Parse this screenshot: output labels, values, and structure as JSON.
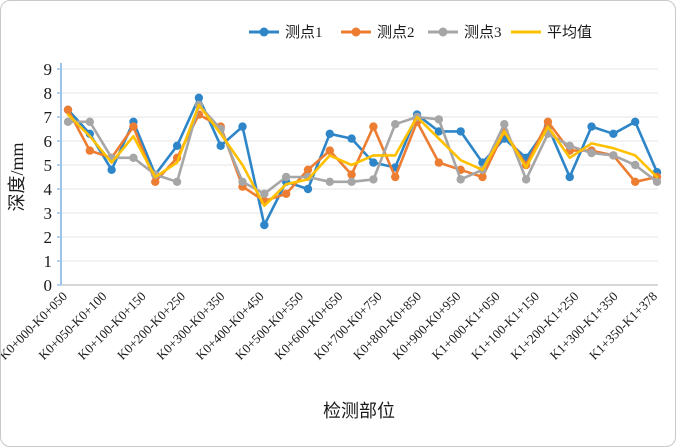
{
  "chart_data": {
    "type": "line",
    "title": "",
    "xlabel": "检测部位",
    "ylabel": "深度/mm",
    "ylim": [
      0,
      9
    ],
    "y_ticks": [
      0,
      1,
      2,
      3,
      4,
      5,
      6,
      7,
      8,
      9
    ],
    "grid": "horizontal",
    "legend_position": "top",
    "n_points": 28,
    "x_tick_labels": [
      "K0+000-K0+050",
      "K0+050-K0+100",
      "K0+100-K0+150",
      "K0+200-K0+250",
      "K0+300-K0+350",
      "K0+400-K0+450",
      "K0+500-K0+550",
      "K0+600-K0+650",
      "K0+700-K0+750",
      "K0+800-K0+850",
      "K0+900-K0+950",
      "K1+000-K1+050",
      "K1+100-K1+150",
      "K1+200-K1+250",
      "K1+300-K1+350",
      "K1+350-K1+378"
    ],
    "series": [
      {
        "name": "测点1",
        "color": "#2E86C8",
        "marker": "circle",
        "values": [
          7.3,
          6.3,
          4.8,
          6.8,
          4.6,
          5.8,
          7.8,
          5.8,
          6.6,
          2.5,
          4.3,
          4.0,
          6.3,
          6.1,
          5.1,
          4.9,
          7.1,
          6.4,
          6.4,
          5.1,
          6.1,
          5.3,
          6.6,
          4.5,
          6.6,
          6.3,
          6.8,
          4.7
        ]
      },
      {
        "name": "测点2",
        "color": "#ED7D31",
        "marker": "circle",
        "values": [
          7.3,
          5.6,
          5.3,
          6.6,
          4.3,
          5.3,
          7.1,
          6.6,
          4.1,
          3.5,
          3.8,
          4.8,
          5.6,
          4.6,
          6.6,
          4.5,
          6.8,
          5.1,
          4.8,
          4.5,
          6.4,
          5.0,
          6.8,
          5.6,
          5.6,
          5.4,
          4.3,
          4.5
        ]
      },
      {
        "name": "测点3",
        "color": "#A6A6A6",
        "marker": "circle",
        "values": [
          6.8,
          6.8,
          5.3,
          5.3,
          4.6,
          4.3,
          7.5,
          6.5,
          4.3,
          3.8,
          4.5,
          4.5,
          4.3,
          4.3,
          4.4,
          6.7,
          7.0,
          6.9,
          4.4,
          4.8,
          6.7,
          4.4,
          6.3,
          5.8,
          5.5,
          5.4,
          5.0,
          4.3
        ]
      },
      {
        "name": "平均值",
        "color": "#FFC000",
        "marker": "none",
        "values": [
          7.1,
          6.2,
          5.1,
          6.2,
          4.5,
          5.1,
          7.5,
          6.3,
          5.0,
          3.3,
          4.2,
          4.4,
          5.4,
          5.0,
          5.4,
          5.4,
          7.0,
          6.1,
          5.2,
          4.8,
          6.4,
          4.9,
          6.6,
          5.3,
          5.9,
          5.7,
          5.4,
          4.5
        ]
      }
    ]
  },
  "style": {
    "gridline_color": "#e4e4e4",
    "x_axis_color": "#bfbfbf",
    "y_axis_color": "#9dc3e6",
    "text_color": "#1a1a1a"
  }
}
